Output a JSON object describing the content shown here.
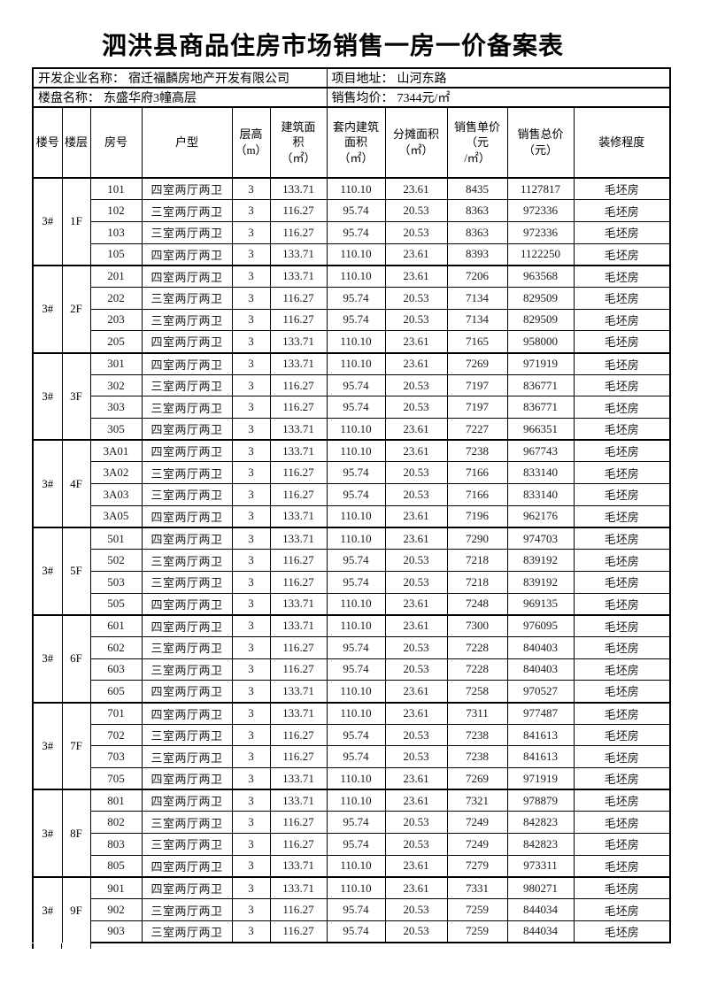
{
  "title": "泗洪县商品住房市场销售一房一价备案表",
  "info": {
    "developer": {
      "label": "开发企业名称：",
      "value": "宿迁福麟房地产开发有限公司"
    },
    "address": {
      "label": "项目地址：",
      "value": "山河东路"
    },
    "project": {
      "label": "楼盘名称：",
      "value": "东盛华府3幢高层"
    },
    "avg_price": {
      "label": "销售均价：",
      "value": "7344元/㎡"
    }
  },
  "table": {
    "columns": [
      {
        "label": "楼号"
      },
      {
        "label": "楼层"
      },
      {
        "label": "房号"
      },
      {
        "label": "户型"
      },
      {
        "label": "层高\n（m）"
      },
      {
        "label": "建筑面\n积\n（㎡）"
      },
      {
        "label": "套内建筑\n面积\n（㎡）"
      },
      {
        "label": "分摊面积\n（㎡）"
      },
      {
        "label": "销售单价\n（元\n/㎡）"
      },
      {
        "label": "销售总价\n（元）"
      },
      {
        "label": "装修程度"
      }
    ],
    "groups": [
      {
        "building": "3#",
        "floor": "1F",
        "rows": [
          [
            "101",
            "四室两厅两卫",
            "3",
            "133.71",
            "110.10",
            "23.61",
            "8435",
            "1127817",
            "毛坯房"
          ],
          [
            "102",
            "三室两厅两卫",
            "3",
            "116.27",
            "95.74",
            "20.53",
            "8363",
            "972336",
            "毛坯房"
          ],
          [
            "103",
            "三室两厅两卫",
            "3",
            "116.27",
            "95.74",
            "20.53",
            "8363",
            "972336",
            "毛坯房"
          ],
          [
            "105",
            "四室两厅两卫",
            "3",
            "133.71",
            "110.10",
            "23.61",
            "8393",
            "1122250",
            "毛坯房"
          ]
        ]
      },
      {
        "building": "3#",
        "floor": "2F",
        "rows": [
          [
            "201",
            "四室两厅两卫",
            "3",
            "133.71",
            "110.10",
            "23.61",
            "7206",
            "963568",
            "毛坯房"
          ],
          [
            "202",
            "三室两厅两卫",
            "3",
            "116.27",
            "95.74",
            "20.53",
            "7134",
            "829509",
            "毛坯房"
          ],
          [
            "203",
            "三室两厅两卫",
            "3",
            "116.27",
            "95.74",
            "20.53",
            "7134",
            "829509",
            "毛坯房"
          ],
          [
            "205",
            "四室两厅两卫",
            "3",
            "133.71",
            "110.10",
            "23.61",
            "7165",
            "958000",
            "毛坯房"
          ]
        ]
      },
      {
        "building": "3#",
        "floor": "3F",
        "rows": [
          [
            "301",
            "四室两厅两卫",
            "3",
            "133.71",
            "110.10",
            "23.61",
            "7269",
            "971919",
            "毛坯房"
          ],
          [
            "302",
            "三室两厅两卫",
            "3",
            "116.27",
            "95.74",
            "20.53",
            "7197",
            "836771",
            "毛坯房"
          ],
          [
            "303",
            "三室两厅两卫",
            "3",
            "116.27",
            "95.74",
            "20.53",
            "7197",
            "836771",
            "毛坯房"
          ],
          [
            "305",
            "四室两厅两卫",
            "3",
            "133.71",
            "110.10",
            "23.61",
            "7227",
            "966351",
            "毛坯房"
          ]
        ]
      },
      {
        "building": "3#",
        "floor": "4F",
        "rows": [
          [
            "3A01",
            "四室两厅两卫",
            "3",
            "133.71",
            "110.10",
            "23.61",
            "7238",
            "967743",
            "毛坯房"
          ],
          [
            "3A02",
            "三室两厅两卫",
            "3",
            "116.27",
            "95.74",
            "20.53",
            "7166",
            "833140",
            "毛坯房"
          ],
          [
            "3A03",
            "三室两厅两卫",
            "3",
            "116.27",
            "95.74",
            "20.53",
            "7166",
            "833140",
            "毛坯房"
          ],
          [
            "3A05",
            "四室两厅两卫",
            "3",
            "133.71",
            "110.10",
            "23.61",
            "7196",
            "962176",
            "毛坯房"
          ]
        ]
      },
      {
        "building": "3#",
        "floor": "5F",
        "rows": [
          [
            "501",
            "四室两厅两卫",
            "3",
            "133.71",
            "110.10",
            "23.61",
            "7290",
            "974703",
            "毛坯房"
          ],
          [
            "502",
            "三室两厅两卫",
            "3",
            "116.27",
            "95.74",
            "20.53",
            "7218",
            "839192",
            "毛坯房"
          ],
          [
            "503",
            "三室两厅两卫",
            "3",
            "116.27",
            "95.74",
            "20.53",
            "7218",
            "839192",
            "毛坯房"
          ],
          [
            "505",
            "四室两厅两卫",
            "3",
            "133.71",
            "110.10",
            "23.61",
            "7248",
            "969135",
            "毛坯房"
          ]
        ]
      },
      {
        "building": "3#",
        "floor": "6F",
        "rows": [
          [
            "601",
            "四室两厅两卫",
            "3",
            "133.71",
            "110.10",
            "23.61",
            "7300",
            "976095",
            "毛坯房"
          ],
          [
            "602",
            "三室两厅两卫",
            "3",
            "116.27",
            "95.74",
            "20.53",
            "7228",
            "840403",
            "毛坯房"
          ],
          [
            "603",
            "三室两厅两卫",
            "3",
            "116.27",
            "95.74",
            "20.53",
            "7228",
            "840403",
            "毛坯房"
          ],
          [
            "605",
            "四室两厅两卫",
            "3",
            "133.71",
            "110.10",
            "23.61",
            "7258",
            "970527",
            "毛坯房"
          ]
        ]
      },
      {
        "building": "3#",
        "floor": "7F",
        "rows": [
          [
            "701",
            "四室两厅两卫",
            "3",
            "133.71",
            "110.10",
            "23.61",
            "7311",
            "977487",
            "毛坯房"
          ],
          [
            "702",
            "三室两厅两卫",
            "3",
            "116.27",
            "95.74",
            "20.53",
            "7238",
            "841613",
            "毛坯房"
          ],
          [
            "703",
            "三室两厅两卫",
            "3",
            "116.27",
            "95.74",
            "20.53",
            "7238",
            "841613",
            "毛坯房"
          ],
          [
            "705",
            "四室两厅两卫",
            "3",
            "133.71",
            "110.10",
            "23.61",
            "7269",
            "971919",
            "毛坯房"
          ]
        ]
      },
      {
        "building": "3#",
        "floor": "8F",
        "rows": [
          [
            "801",
            "四室两厅两卫",
            "3",
            "133.71",
            "110.10",
            "23.61",
            "7321",
            "978879",
            "毛坯房"
          ],
          [
            "802",
            "三室两厅两卫",
            "3",
            "116.27",
            "95.74",
            "20.53",
            "7249",
            "842823",
            "毛坯房"
          ],
          [
            "803",
            "三室两厅两卫",
            "3",
            "116.27",
            "95.74",
            "20.53",
            "7249",
            "842823",
            "毛坯房"
          ],
          [
            "805",
            "四室两厅两卫",
            "3",
            "133.71",
            "110.10",
            "23.61",
            "7279",
            "973311",
            "毛坯房"
          ]
        ]
      },
      {
        "building": "3#",
        "floor": "9F",
        "cut_off": true,
        "rows": [
          [
            "901",
            "四室两厅两卫",
            "3",
            "133.71",
            "110.10",
            "23.61",
            "7331",
            "980271",
            "毛坯房"
          ],
          [
            "902",
            "三室两厅两卫",
            "3",
            "116.27",
            "95.74",
            "20.53",
            "7259",
            "844034",
            "毛坯房"
          ],
          [
            "903",
            "三室两厅两卫",
            "3",
            "116.27",
            "95.74",
            "20.53",
            "7259",
            "844034",
            "毛坯房"
          ]
        ]
      }
    ]
  }
}
